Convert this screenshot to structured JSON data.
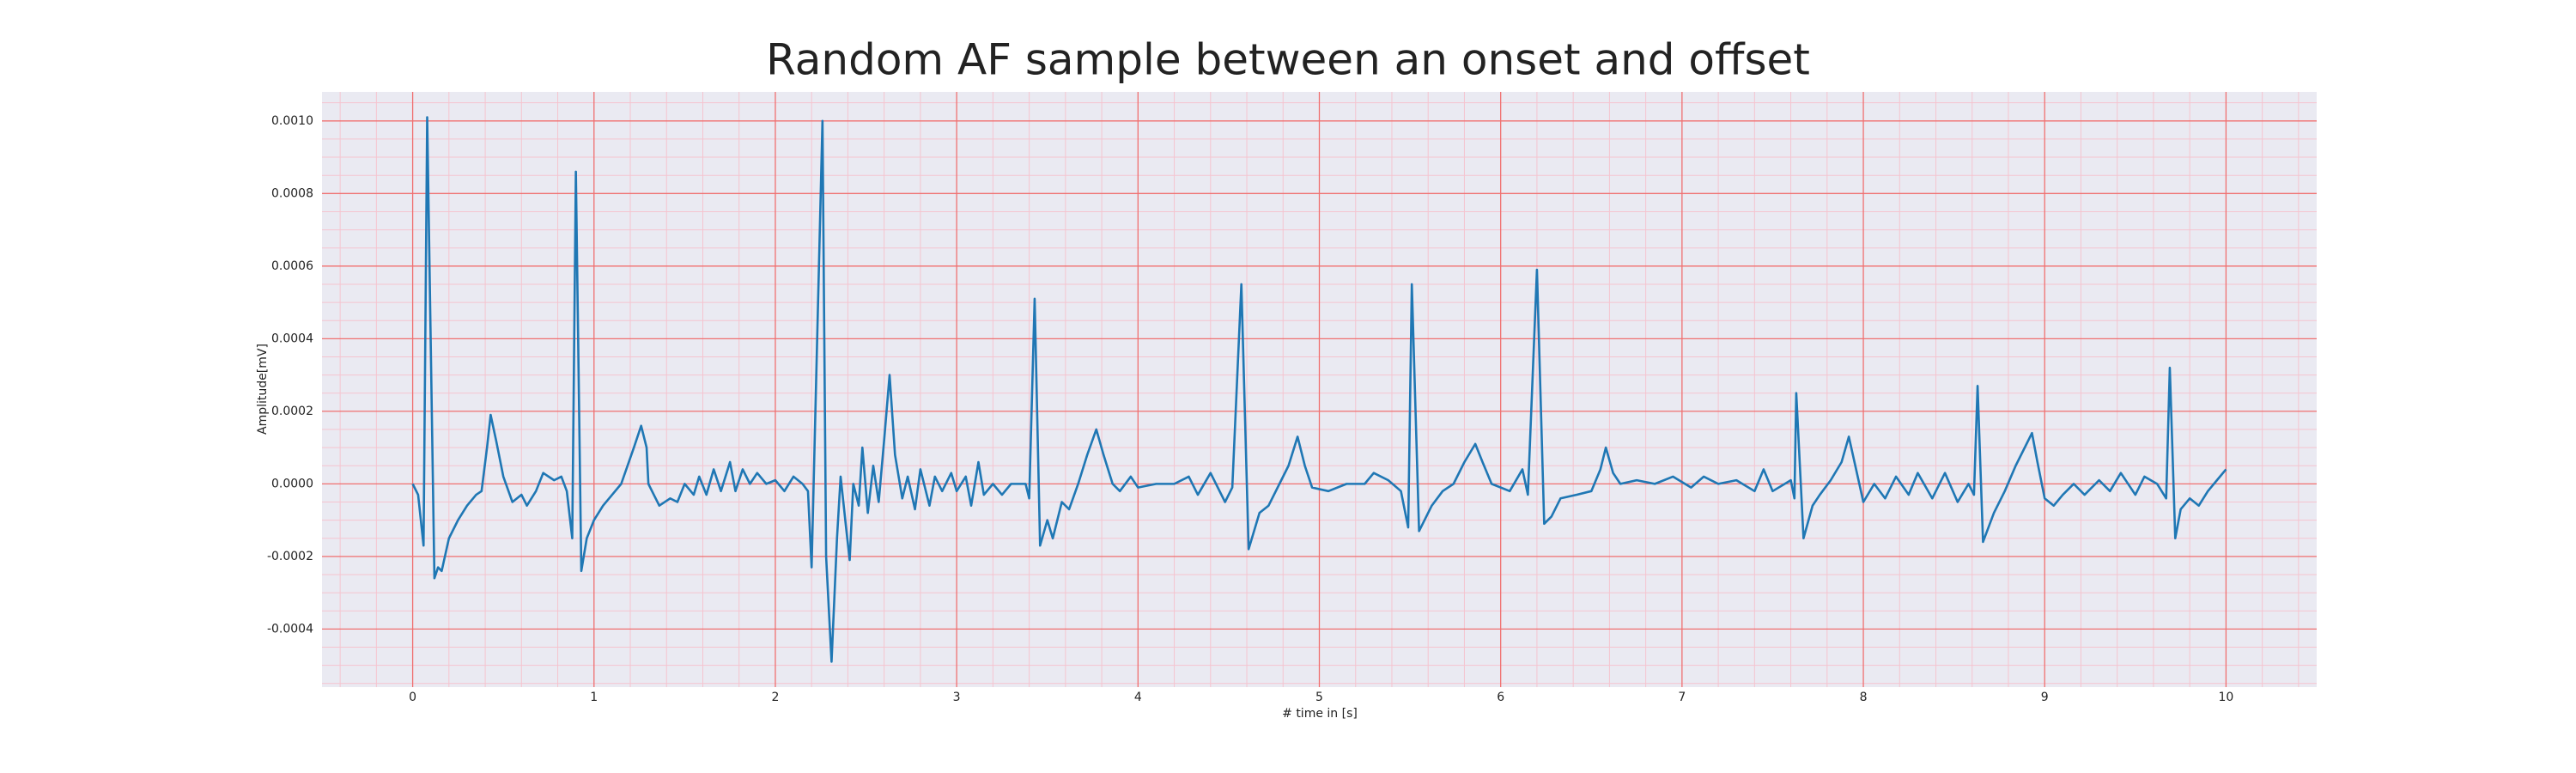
{
  "chart_data": {
    "type": "line",
    "title": "Random AF sample between an onset and offset",
    "xlabel": "# time in [s]",
    "ylabel": "Amplitude[mV]",
    "xlim": [
      -0.5,
      10.5
    ],
    "ylim": [
      -0.00056,
      0.00108
    ],
    "xticks": [
      0,
      1,
      2,
      3,
      4,
      5,
      6,
      7,
      8,
      9,
      10
    ],
    "yticks": [
      -0.0004,
      -0.0002,
      {
        "value": 0,
        "label": "0.0000"
      },
      0.0002,
      0.0004,
      0.0006,
      0.0008,
      {
        "value": 0.001,
        "label": "0.0010"
      }
    ],
    "minor_xticks": [
      -0.4,
      -0.2,
      0.2,
      0.4,
      0.6,
      0.8,
      1.2,
      1.4,
      1.6,
      1.8,
      2.2,
      2.4,
      2.6,
      2.8,
      3.2,
      3.4,
      3.6,
      3.8,
      4.2,
      4.4,
      4.6,
      4.8,
      5.2,
      5.4,
      5.6,
      5.8,
      6.2,
      6.4,
      6.6,
      6.8,
      7.2,
      7.4,
      7.6,
      7.8,
      8.2,
      8.4,
      8.6,
      8.8,
      9.2,
      9.4,
      9.6,
      9.8,
      10.2,
      10.4
    ],
    "minor_yticks": [
      -0.00055,
      -0.0005,
      -0.00045,
      -0.00035,
      -0.0003,
      -0.00025,
      -0.00015,
      -0.0001,
      -5e-05,
      5e-05,
      0.0001,
      0.00015,
      0.00025,
      0.0003,
      0.00035,
      0.00045,
      0.0005,
      0.00055,
      0.00065,
      0.0007,
      0.00075,
      0.00085,
      0.0009,
      0.00095,
      0.00105
    ],
    "grid": true,
    "background": "#eaeaf2",
    "major_grid_color": "#f07070",
    "minor_grid_color": "#f5c4cf",
    "series": [
      {
        "color": "#1f77b4",
        "x": [
          0,
          0.03,
          0.06,
          0.08,
          0.12,
          0.14,
          0.16,
          0.2,
          0.25,
          0.3,
          0.35,
          0.38,
          0.41,
          0.43,
          0.46,
          0.5,
          0.55,
          0.6,
          0.63,
          0.68,
          0.72,
          0.78,
          0.82,
          0.85,
          0.88,
          0.9,
          0.93,
          0.96,
          1.0,
          1.05,
          1.1,
          1.15,
          1.22,
          1.26,
          1.29,
          1.3,
          1.36,
          1.42,
          1.46,
          1.5,
          1.55,
          1.58,
          1.62,
          1.66,
          1.7,
          1.75,
          1.78,
          1.82,
          1.86,
          1.9,
          1.95,
          2.0,
          2.05,
          2.1,
          2.15,
          2.18,
          2.2,
          2.26,
          2.28,
          2.31,
          2.34,
          2.36,
          2.39,
          2.41,
          2.43,
          2.46,
          2.48,
          2.51,
          2.54,
          2.57,
          2.6,
          2.63,
          2.66,
          2.7,
          2.73,
          2.77,
          2.8,
          2.85,
          2.88,
          2.92,
          2.97,
          3.0,
          3.05,
          3.08,
          3.12,
          3.15,
          3.2,
          3.25,
          3.3,
          3.38,
          3.4,
          3.43,
          3.46,
          3.5,
          3.53,
          3.58,
          3.62,
          3.67,
          3.72,
          3.77,
          3.81,
          3.86,
          3.9,
          3.96,
          4.0,
          4.1,
          4.2,
          4.28,
          4.33,
          4.4,
          4.48,
          4.52,
          4.57,
          4.61,
          4.67,
          4.72,
          4.78,
          4.83,
          4.88,
          4.92,
          4.96,
          5.05,
          5.15,
          5.25,
          5.3,
          5.38,
          5.45,
          5.49,
          5.51,
          5.55,
          5.62,
          5.68,
          5.74,
          5.8,
          5.86,
          5.9,
          5.95,
          6.05,
          6.12,
          6.15,
          6.2,
          6.24,
          6.28,
          6.33,
          6.42,
          6.5,
          6.55,
          6.58,
          6.62,
          6.66,
          6.75,
          6.85,
          6.95,
          7.05,
          7.12,
          7.2,
          7.3,
          7.4,
          7.45,
          7.5,
          7.6,
          7.62,
          7.63,
          7.67,
          7.72,
          7.76,
          7.82,
          7.88,
          7.92,
          7.96,
          8.0,
          8.06,
          8.12,
          8.18,
          8.25,
          8.3,
          8.38,
          8.45,
          8.52,
          8.58,
          8.61,
          8.63,
          8.66,
          8.72,
          8.78,
          8.84,
          8.9,
          8.93,
          8.96,
          9.0,
          9.05,
          9.1,
          9.16,
          9.22,
          9.3,
          9.36,
          9.42,
          9.5,
          9.55,
          9.62,
          9.67,
          9.69,
          9.72,
          9.75,
          9.8,
          9.85,
          9.9,
          9.95,
          10.0
        ],
        "values": [
          0,
          -3e-05,
          -0.00017,
          0.00101,
          -0.00026,
          -0.00023,
          -0.00024,
          -0.00015,
          -0.0001,
          -6e-05,
          -3e-05,
          -2e-05,
          0.0001,
          0.00019,
          0.00012,
          2e-05,
          -5e-05,
          -3e-05,
          -6e-05,
          -2e-05,
          3e-05,
          1e-05,
          2e-05,
          -2e-05,
          -0.00015,
          0.00086,
          -0.00024,
          -0.00015,
          -0.0001,
          -6e-05,
          -3e-05,
          0,
          0.0001,
          0.00016,
          0.0001,
          0,
          -6e-05,
          -4e-05,
          -5e-05,
          0,
          -3e-05,
          2e-05,
          -3e-05,
          4e-05,
          -2e-05,
          6e-05,
          -2e-05,
          4e-05,
          0,
          3e-05,
          0,
          1e-05,
          -2e-05,
          2e-05,
          0,
          -2e-05,
          -0.00023,
          0.001,
          -0.0002,
          -0.00049,
          -0.00015,
          2e-05,
          -0.00012,
          -0.00021,
          0,
          -6e-05,
          0.0001,
          -8e-05,
          5e-05,
          -5e-05,
          0.00012,
          0.0003,
          8e-05,
          -4e-05,
          2e-05,
          -7e-05,
          4e-05,
          -6e-05,
          2e-05,
          -2e-05,
          3e-05,
          -2e-05,
          2e-05,
          -6e-05,
          6e-05,
          -3e-05,
          0,
          -3e-05,
          0,
          0,
          -4e-05,
          0.00051,
          -0.00017,
          -0.0001,
          -0.00015,
          -5e-05,
          -7e-05,
          0,
          8e-05,
          0.00015,
          8e-05,
          0,
          -2e-05,
          2e-05,
          -1e-05,
          0,
          0,
          2e-05,
          -3e-05,
          3e-05,
          -5e-05,
          -1e-05,
          0.00055,
          -0.00018,
          -8e-05,
          -6e-05,
          0,
          5e-05,
          0.00013,
          5e-05,
          -1e-05,
          -2e-05,
          0,
          0,
          3e-05,
          1e-05,
          -2e-05,
          -0.00012,
          0.00055,
          -0.00013,
          -6e-05,
          -2e-05,
          0,
          6e-05,
          0.00011,
          6e-05,
          0,
          -2e-05,
          4e-05,
          -3e-05,
          0.00059,
          -0.00011,
          -9e-05,
          -4e-05,
          -3e-05,
          -2e-05,
          4e-05,
          0.0001,
          3e-05,
          0,
          1e-05,
          0,
          2e-05,
          -1e-05,
          2e-05,
          0,
          1e-05,
          -2e-05,
          4e-05,
          -2e-05,
          1e-05,
          -4e-05,
          0.00025,
          -0.00015,
          -6e-05,
          -3e-05,
          1e-05,
          6e-05,
          0.00013,
          4e-05,
          -5e-05,
          0,
          -4e-05,
          2e-05,
          -3e-05,
          3e-05,
          -4e-05,
          3e-05,
          -5e-05,
          0,
          -3e-05,
          0.00027,
          -0.00016,
          -8e-05,
          -2e-05,
          5e-05,
          0.00011,
          0.00014,
          6e-05,
          -4e-05,
          -6e-05,
          -3e-05,
          0,
          -3e-05,
          1e-05,
          -2e-05,
          3e-05,
          -3e-05,
          2e-05,
          0,
          -4e-05,
          0.00032,
          -0.00015,
          -7e-05,
          -4e-05,
          -6e-05,
          -2e-05,
          1e-05,
          4e-05
        ]
      }
    ]
  }
}
